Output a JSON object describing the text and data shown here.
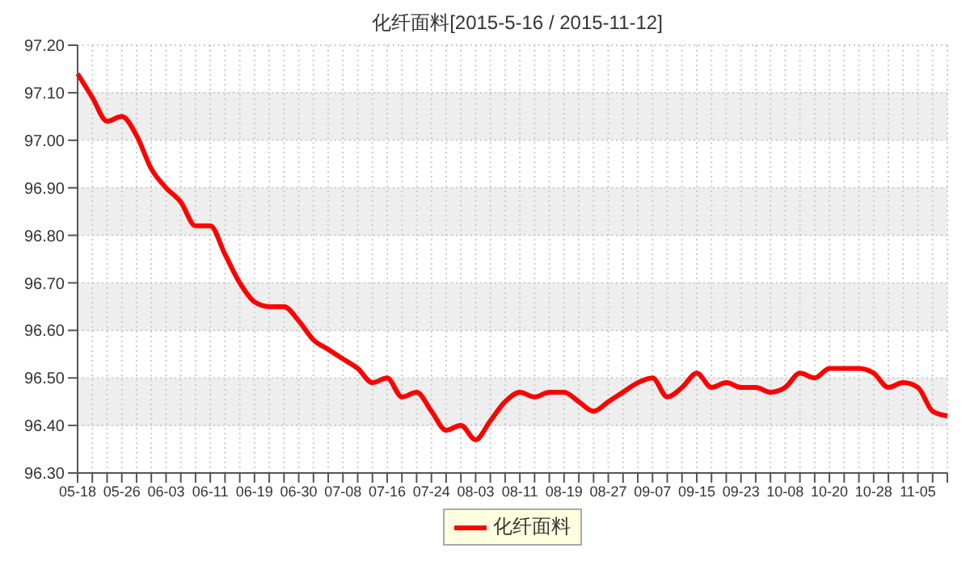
{
  "chart_data": {
    "type": "line",
    "title": "化纤面料[2015-5-16 / 2015-11-12]",
    "categories": [
      "05-18",
      null,
      null,
      "05-26",
      null,
      null,
      "06-03",
      null,
      null,
      "06-11",
      null,
      null,
      "06-19",
      null,
      null,
      "06-30",
      null,
      null,
      "07-08",
      null,
      null,
      "07-16",
      null,
      null,
      "07-24",
      null,
      null,
      "08-03",
      null,
      null,
      "08-11",
      null,
      null,
      "08-19",
      null,
      null,
      "08-27",
      null,
      null,
      "09-07",
      null,
      null,
      "09-15",
      null,
      null,
      "09-23",
      null,
      null,
      "10-08",
      null,
      null,
      "10-20",
      null,
      null,
      "10-28",
      null,
      null,
      "11-05",
      null,
      null
    ],
    "series": [
      {
        "name": "化纤面料",
        "color": "#ff0000",
        "values": [
          97.14,
          97.09,
          97.04,
          97.05,
          97.01,
          96.94,
          96.9,
          96.87,
          96.82,
          96.82,
          96.76,
          96.7,
          96.66,
          96.65,
          96.65,
          96.62,
          96.58,
          96.56,
          96.54,
          96.52,
          96.49,
          96.5,
          96.46,
          96.47,
          96.43,
          96.39,
          96.4,
          96.37,
          96.41,
          96.45,
          96.47,
          96.46,
          96.47,
          96.47,
          96.45,
          96.43,
          96.45,
          96.47,
          96.49,
          96.5,
          96.46,
          96.48,
          96.51,
          96.48,
          96.49,
          96.48,
          96.48,
          96.47,
          96.48,
          96.51,
          96.5,
          96.52,
          96.52,
          96.52,
          96.51,
          96.48,
          96.49,
          96.48,
          96.43,
          96.42
        ]
      }
    ],
    "ylim": [
      96.3,
      97.2
    ],
    "yticks": [
      {
        "value": 96.3,
        "label": "96.30"
      },
      {
        "value": 96.4,
        "label": "96.40"
      },
      {
        "value": 96.5,
        "label": "96.50"
      },
      {
        "value": 96.6,
        "label": "96.60"
      },
      {
        "value": 96.7,
        "label": "96.70"
      },
      {
        "value": 96.8,
        "label": "96.80"
      },
      {
        "value": 96.9,
        "label": "96.90"
      },
      {
        "value": 97.0,
        "label": "97.00"
      },
      {
        "value": 97.1,
        "label": "97.10"
      },
      {
        "value": 97.2,
        "label": "97.20"
      }
    ],
    "grid": true,
    "legend": "bottom",
    "marker": "none",
    "line_style": "solid"
  }
}
